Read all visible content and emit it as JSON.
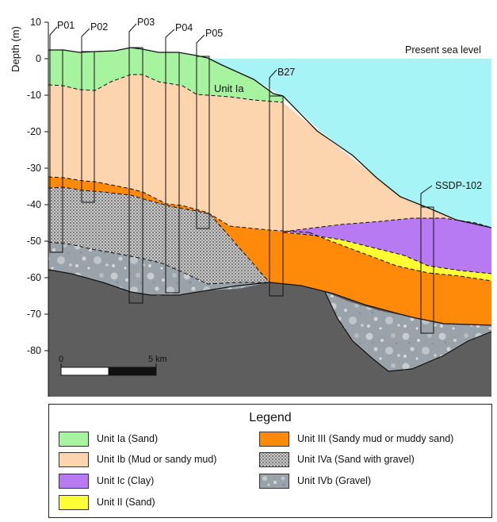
{
  "axis": {
    "ylabel": "Depth (m)",
    "ticks": [
      "10",
      "0",
      "-10",
      "-20",
      "-30",
      "-40",
      "-50",
      "-60",
      "-70",
      "-80"
    ]
  },
  "sea_label": "Present sea level",
  "boreholes": [
    "P01",
    "P02",
    "P03",
    "P04",
    "P05",
    "B27",
    "SSDP-102"
  ],
  "unit_label": "Unit Ia",
  "scalebar": {
    "start": "0",
    "end": "5 km"
  },
  "legend": {
    "title": "Legend",
    "items": [
      {
        "label": "Unit Ia (Sand)",
        "color": "#a6f3a0"
      },
      {
        "label": "Unit Ib (Mud or sandy mud)",
        "color": "#fcd4ae"
      },
      {
        "label": "Unit Ic (Clay)",
        "color": "#b77af2"
      },
      {
        "label": "Unit II (Sand)",
        "color": "#ffff33"
      },
      {
        "label": "Unit III (Sandy mud or muddy sand)",
        "color": "#ff8a0a"
      },
      {
        "label": "Unit IVa (Sand with gravel)",
        "color": "#bcbcbc"
      },
      {
        "label": "Unit IVb (Gravel)",
        "color": "#9aa3aa"
      }
    ]
  },
  "colors": {
    "sea": "#a6f4f6",
    "bedrock": "#5e5e5e",
    "unit_ia": "#a6f3a0",
    "unit_ib": "#fcd4ae",
    "unit_ic": "#b77af2",
    "unit_ii": "#ffff33",
    "unit_iii": "#ff8a0a",
    "unit_iva": "#bcbcbc",
    "unit_ivb": "#9aa3aa"
  }
}
